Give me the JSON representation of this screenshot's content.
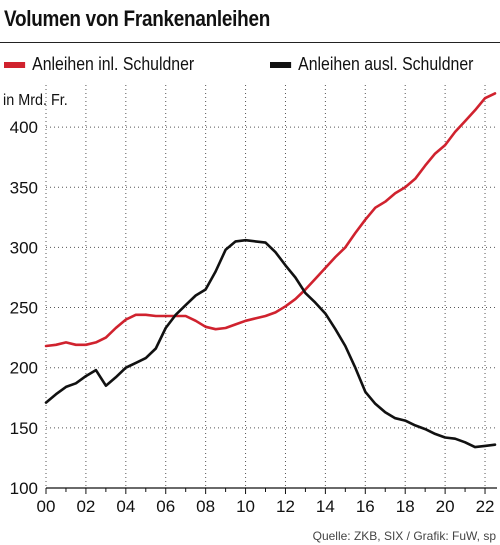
{
  "header": {
    "title": "Volumen von Frankenanleihen"
  },
  "footer": {
    "source": "Quelle: ZKB, SIX / Grafik: FuW, sp"
  },
  "chart_data": {
    "type": "line",
    "title": "Volumen von Frankenanleihen",
    "unit_label": "in Mrd. Fr.",
    "xlim": [
      2000,
      2022.6
    ],
    "ylim": [
      100,
      435
    ],
    "x_ticks": [
      2000,
      2002,
      2004,
      2006,
      2008,
      2010,
      2012,
      2014,
      2016,
      2018,
      2020,
      2022
    ],
    "x_tick_labels": [
      "00",
      "02",
      "04",
      "06",
      "08",
      "10",
      "12",
      "14",
      "16",
      "18",
      "20",
      "22"
    ],
    "y_ticks": [
      100,
      150,
      200,
      250,
      300,
      350,
      400
    ],
    "y_tick_labels": [
      "100",
      "150",
      "200",
      "250",
      "300",
      "350",
      "400"
    ],
    "grid": "dotted",
    "legend_position": "top",
    "series": [
      {
        "name": "Anleihen inl. Schuldner",
        "color": "#d0222e",
        "x": [
          2000.0,
          2000.5,
          2001.0,
          2001.5,
          2002.0,
          2002.5,
          2003.0,
          2003.5,
          2004.0,
          2004.5,
          2005.0,
          2005.5,
          2006.0,
          2006.5,
          2007.0,
          2007.5,
          2008.0,
          2008.5,
          2009.0,
          2009.5,
          2010.0,
          2010.5,
          2011.0,
          2011.5,
          2012.0,
          2012.5,
          2013.0,
          2013.5,
          2014.0,
          2014.5,
          2015.0,
          2015.5,
          2016.0,
          2016.5,
          2017.0,
          2017.5,
          2018.0,
          2018.5,
          2019.0,
          2019.5,
          2020.0,
          2020.5,
          2021.0,
          2021.5,
          2022.0,
          2022.5
        ],
        "values": [
          218,
          219,
          221,
          219,
          219,
          221,
          225,
          233,
          240,
          244,
          244,
          243,
          243,
          243,
          243,
          239,
          234,
          232,
          233,
          236,
          239,
          241,
          243,
          246,
          251,
          257,
          265,
          274,
          283,
          292,
          300,
          312,
          323,
          333,
          338,
          345,
          350,
          357,
          368,
          378,
          385,
          396,
          405,
          414,
          424,
          428
        ]
      },
      {
        "name": "Anleihen ausl. Schuldner",
        "color": "#111111",
        "x": [
          2000.0,
          2000.5,
          2001.0,
          2001.5,
          2002.0,
          2002.5,
          2003.0,
          2003.5,
          2004.0,
          2004.5,
          2005.0,
          2005.5,
          2006.0,
          2006.5,
          2007.0,
          2007.5,
          2008.0,
          2008.5,
          2009.0,
          2009.5,
          2010.0,
          2010.5,
          2011.0,
          2011.5,
          2012.0,
          2012.5,
          2013.0,
          2013.5,
          2014.0,
          2014.5,
          2015.0,
          2015.5,
          2016.0,
          2016.5,
          2017.0,
          2017.5,
          2018.0,
          2018.5,
          2019.0,
          2019.5,
          2020.0,
          2020.5,
          2021.0,
          2021.5,
          2022.0,
          2022.5
        ],
        "values": [
          171,
          178,
          184,
          187,
          193,
          198,
          185,
          192,
          200,
          204,
          208,
          216,
          233,
          244,
          252,
          260,
          265,
          280,
          298,
          305,
          306,
          305,
          304,
          296,
          285,
          275,
          262,
          254,
          245,
          232,
          218,
          200,
          180,
          170,
          163,
          158,
          156,
          152,
          149,
          145,
          142,
          141,
          138,
          134,
          135,
          136
        ]
      }
    ]
  }
}
